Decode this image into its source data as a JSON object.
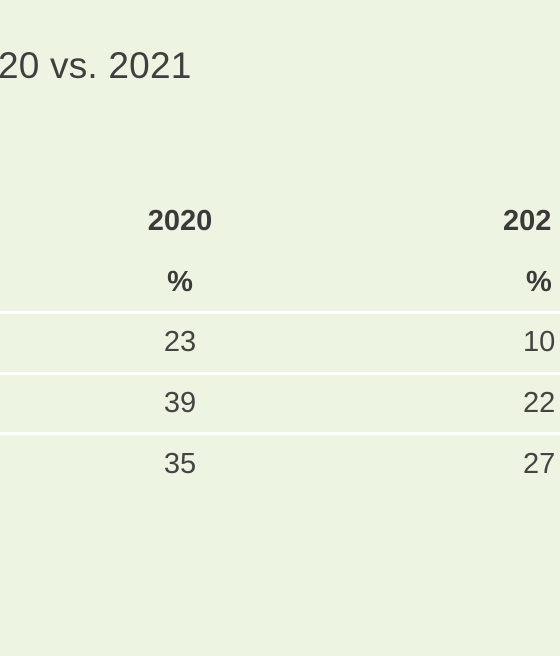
{
  "title": "20 vs. 2021",
  "columns": [
    {
      "year": "2020",
      "unit": "%",
      "values": [
        "23",
        "39",
        "35"
      ]
    },
    {
      "year": "202",
      "unit": "%",
      "values": [
        "10",
        "22",
        "27"
      ]
    }
  ]
}
